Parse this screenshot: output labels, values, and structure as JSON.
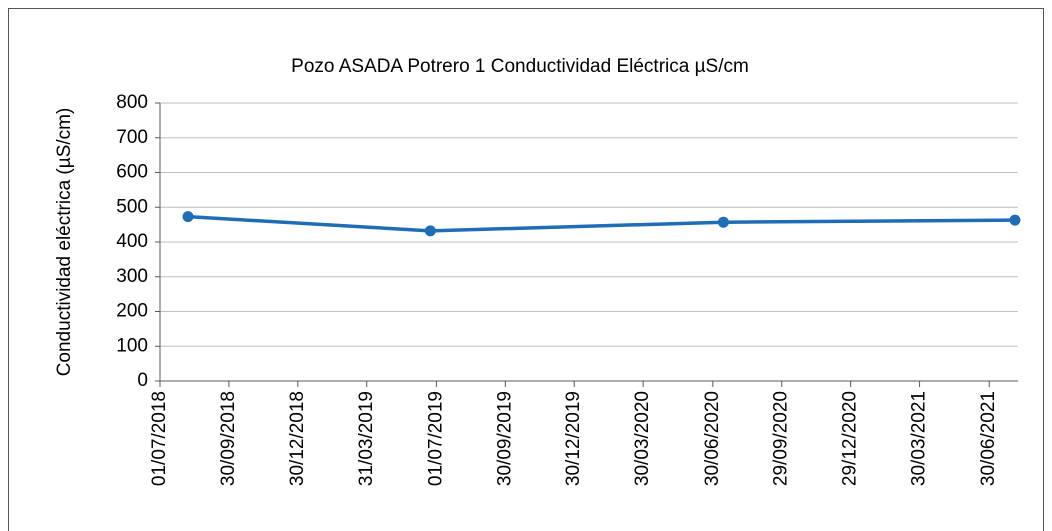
{
  "chart_data": {
    "type": "line",
    "title": "Pozo ASADA Potrero 1 Conductividad  Eléctrica µS/cm",
    "y_label": "Conductividad eléctrica (µS/cm)",
    "x": [
      "2018-08-07",
      "2019-06-23",
      "2020-07-14",
      "2021-08-03"
    ],
    "series": [
      {
        "name": "Conductividad eléctrica",
        "color": "#1f6db5",
        "values": [
          473,
          432,
          457,
          463
        ]
      }
    ],
    "xlim": [
      "2018-07-01",
      "2021-08-07"
    ],
    "xticks": [
      {
        "value": "2018-07-01",
        "label": "01/07/2018"
      },
      {
        "value": "2018-09-30",
        "label": "30/09/2018"
      },
      {
        "value": "2018-12-30",
        "label": "30/12/2018"
      },
      {
        "value": "2019-03-31",
        "label": "31/03/2019"
      },
      {
        "value": "2019-07-01",
        "label": "01/07/2019"
      },
      {
        "value": "2019-09-30",
        "label": "30/09/2019"
      },
      {
        "value": "2019-12-30",
        "label": "30/12/2019"
      },
      {
        "value": "2020-03-30",
        "label": "30/03/2020"
      },
      {
        "value": "2020-06-30",
        "label": "30/06/2020"
      },
      {
        "value": "2020-09-29",
        "label": "29/09/2020"
      },
      {
        "value": "2020-12-29",
        "label": "29/12/2020"
      },
      {
        "value": "2021-03-30",
        "label": "30/03/2021"
      },
      {
        "value": "2021-06-30",
        "label": "30/06/2021"
      }
    ],
    "ylim": [
      0,
      800
    ],
    "yticks": [
      0,
      100,
      200,
      300,
      400,
      500,
      600,
      700,
      800
    ],
    "grid": true
  }
}
